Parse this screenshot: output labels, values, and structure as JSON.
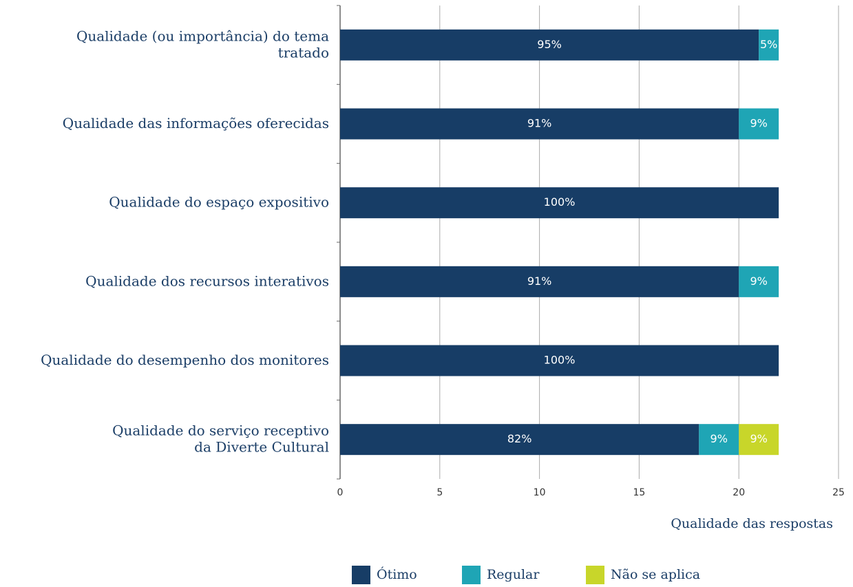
{
  "chart_data": {
    "type": "stacked-barh",
    "categories": [
      "Qualidade (ou importância) do tema\ntratado",
      "Qualidade das informações oferecidas",
      "Qualidade do espaço expositivo",
      "Qualidade dos recursos interativos",
      "Qualidade do desempenho dos monitores",
      "Qualidade do serviço receptivo\nda Diverte Cultural"
    ],
    "series": [
      {
        "name": "Ótimo",
        "color": "#173d66",
        "values": [
          21,
          20,
          22,
          20,
          22,
          18
        ],
        "value_labels": [
          "95%",
          "91%",
          "100%",
          "91%",
          "100%",
          "82%"
        ]
      },
      {
        "name": "Regular",
        "color": "#1fa5b5",
        "values": [
          1,
          2,
          0,
          2,
          0,
          2
        ],
        "value_labels": [
          "5%",
          "9%",
          null,
          "9%",
          null,
          "9%"
        ]
      },
      {
        "name": "Não se aplica",
        "color": "#c8d62a",
        "values": [
          0,
          0,
          0,
          0,
          0,
          2
        ],
        "value_labels": [
          null,
          null,
          null,
          null,
          null,
          "9%"
        ]
      }
    ],
    "xlabel": "Qualidade das respostas",
    "xlim": [
      0,
      25
    ],
    "xticks": [
      0,
      5,
      10,
      15,
      20,
      25
    ],
    "grid": true
  }
}
